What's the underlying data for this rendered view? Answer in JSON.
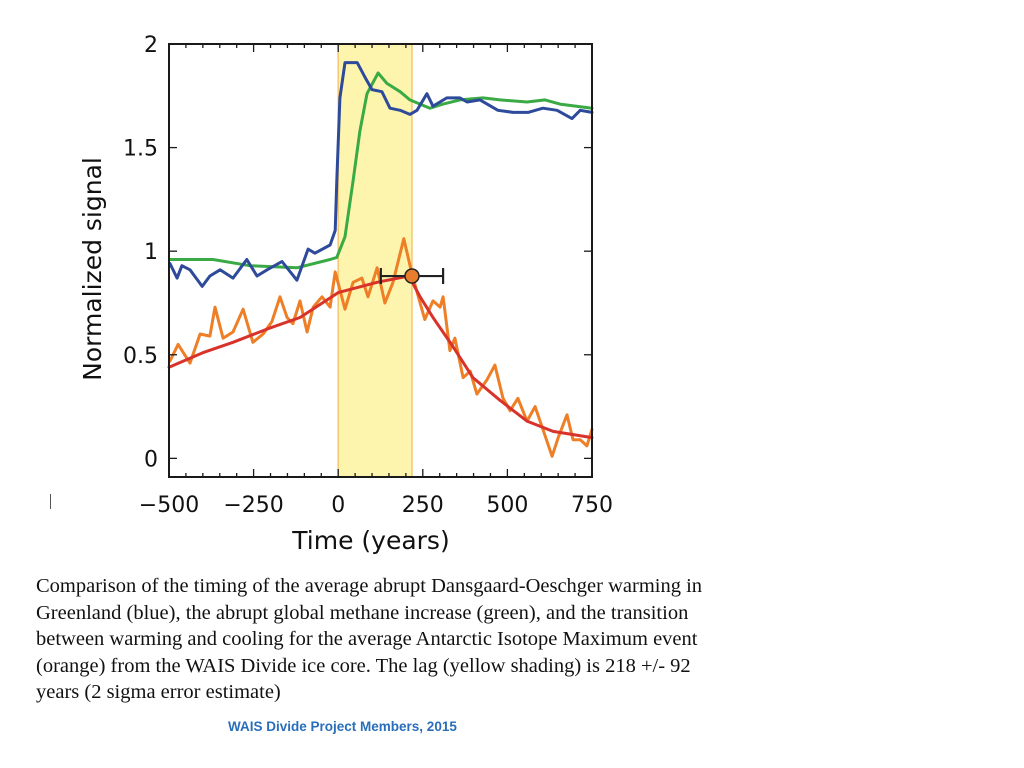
{
  "chart_data": {
    "type": "line",
    "title": "",
    "xlabel": "Time (years)",
    "ylabel": "Normalized signal",
    "xlim": [
      -500,
      750
    ],
    "ylim": [
      -0.09,
      2
    ],
    "xticks": [
      -500,
      -250,
      0,
      250,
      500,
      750
    ],
    "xtick_labels": [
      "−500",
      "−250",
      "0",
      "250",
      "500",
      "750"
    ],
    "yticks": [
      0,
      0.5,
      1,
      1.5,
      2
    ],
    "ytick_labels": [
      "0",
      "0.5",
      "1",
      "1.5",
      "2"
    ],
    "x_minor_step": 50,
    "y_minor_step": 0.5,
    "grid": false,
    "legend": null,
    "shaded_region": {
      "label": "lag (yellow shading)",
      "x_start": 0,
      "x_end": 218,
      "color": "#fdf5ad",
      "edge_color": "#f5c770"
    },
    "marker": {
      "label": "transition point",
      "x": 218,
      "y": 0.88,
      "xerr": 92,
      "color": "#e87d2d"
    },
    "series": [
      {
        "name": "Greenland DO warming (blue)",
        "color": "#2e4a9a",
        "x": [
          -497,
          -476,
          -462,
          -438,
          -402,
          -379,
          -349,
          -311,
          -270,
          -240,
          -210,
          -166,
          -122,
          -89,
          -69,
          -24,
          -9,
          -4,
          5,
          20,
          56,
          79,
          100,
          129,
          153,
          183,
          212,
          233,
          262,
          280,
          321,
          360,
          381,
          419,
          472,
          517,
          561,
          605,
          647,
          691,
          715,
          750
        ],
        "y": [
          0.94,
          0.87,
          0.93,
          0.91,
          0.83,
          0.88,
          0.91,
          0.87,
          0.96,
          0.88,
          0.91,
          0.95,
          0.86,
          1.01,
          0.99,
          1.03,
          1.1,
          1.34,
          1.74,
          1.91,
          1.91,
          1.84,
          1.78,
          1.77,
          1.69,
          1.68,
          1.66,
          1.68,
          1.76,
          1.7,
          1.74,
          1.74,
          1.72,
          1.73,
          1.68,
          1.67,
          1.67,
          1.69,
          1.68,
          1.64,
          1.68,
          1.67
        ]
      },
      {
        "name": "Global methane increase (green)",
        "color": "#3aaa45",
        "x": [
          -497,
          -370,
          -261,
          -122,
          -24,
          -4,
          20,
          44,
          64,
          85,
          118,
          144,
          183,
          212,
          271,
          310,
          360,
          428,
          478,
          558,
          611,
          655,
          750
        ],
        "y": [
          0.96,
          0.96,
          0.93,
          0.92,
          0.96,
          0.97,
          1.07,
          1.34,
          1.58,
          1.76,
          1.86,
          1.81,
          1.77,
          1.73,
          1.69,
          1.71,
          1.73,
          1.74,
          1.73,
          1.72,
          1.73,
          1.71,
          1.69
        ]
      },
      {
        "name": "Antarctic Isotope Maximum (orange)",
        "color": "#ee7f27",
        "x": [
          -497,
          -473,
          -438,
          -408,
          -379,
          -364,
          -340,
          -311,
          -281,
          -252,
          -222,
          -196,
          -172,
          -151,
          -134,
          -113,
          -92,
          -74,
          -48,
          -24,
          -9,
          20,
          44,
          70,
          88,
          115,
          138,
          162,
          194,
          218,
          242,
          256,
          280,
          301,
          310,
          330,
          345,
          369,
          390,
          410,
          440,
          463,
          487,
          508,
          531,
          558,
          582,
          605,
          632,
          650,
          676,
          694,
          715,
          735,
          750
        ],
        "y": [
          0.47,
          0.55,
          0.46,
          0.6,
          0.59,
          0.73,
          0.58,
          0.61,
          0.72,
          0.56,
          0.6,
          0.66,
          0.78,
          0.68,
          0.65,
          0.76,
          0.61,
          0.73,
          0.78,
          0.73,
          0.9,
          0.72,
          0.85,
          0.87,
          0.78,
          0.92,
          0.75,
          0.85,
          1.06,
          0.89,
          0.75,
          0.67,
          0.76,
          0.73,
          0.78,
          0.52,
          0.58,
          0.39,
          0.42,
          0.31,
          0.38,
          0.45,
          0.29,
          0.23,
          0.29,
          0.18,
          0.25,
          0.14,
          0.01,
          0.1,
          0.21,
          0.09,
          0.09,
          0.06,
          0.14
        ]
      },
      {
        "name": "Antarctic smooth fit (red)",
        "color": "#d8332a",
        "x": [
          -500,
          -400,
          -311,
          -200,
          -113,
          0,
          115,
          209,
          242,
          280,
          339,
          398,
          478,
          558,
          635,
          750
        ],
        "y": [
          0.44,
          0.51,
          0.56,
          0.63,
          0.68,
          0.8,
          0.85,
          0.88,
          0.78,
          0.68,
          0.54,
          0.39,
          0.28,
          0.18,
          0.13,
          0.1
        ]
      }
    ]
  },
  "caption": "Comparison of the timing of the average abrupt Dansgaard-Oeschger warming in Greenland (blue), the abrupt global methane increase (green), and the transition between warming and cooling for the average Antarctic Isotope Maximum event (orange) from the WAIS Divide ice core.  The lag (yellow shading) is 218 +/- 92 years (2 sigma error estimate)",
  "credit": "WAIS Divide Project Members, 2015"
}
